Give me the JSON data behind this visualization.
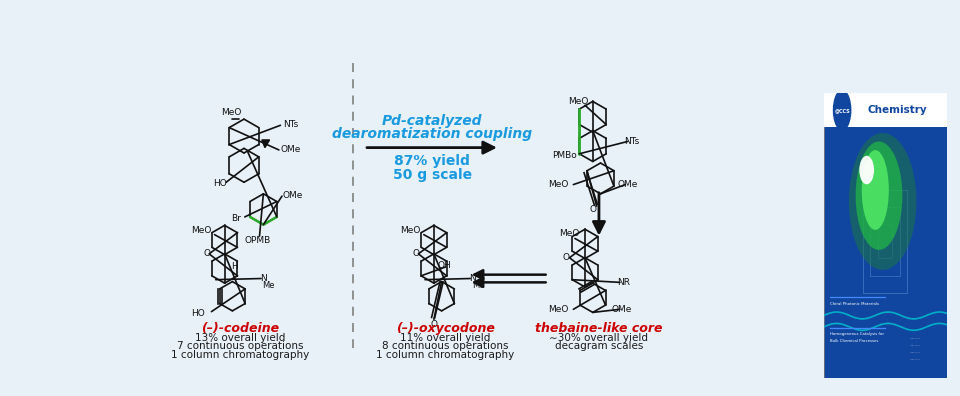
{
  "background_color": "#e8f0f8",
  "fig_width": 9.6,
  "fig_height": 3.96,
  "reaction_label1": "Pd-catalyzed",
  "reaction_label2": "dearomatization coupling",
  "reaction_label3": "87% yield",
  "reaction_label4": "50 g scale",
  "reaction_label_color": "#1a9be0",
  "compound1_name": "(–)-codeine",
  "compound2_name": "(–)-oxycodone",
  "compound3_name": "thebaine-like core",
  "compound_name_color": "#cc0000",
  "compound1_details": [
    "13% overall yield",
    "7 continuous operations",
    "1 column chromatography"
  ],
  "compound2_details": [
    "11% overall yield",
    "8 continuous operations",
    "1 column chromatography"
  ],
  "compound3_details": [
    "∼30% overall yield",
    "decagram scales"
  ],
  "details_color": "#1a1a1a",
  "black": "#111111",
  "green_bond": "#2aaa2a",
  "journal_bg": "#0a3a8c",
  "journal_white": "#ffffff",
  "journal_green": "#22cc44"
}
